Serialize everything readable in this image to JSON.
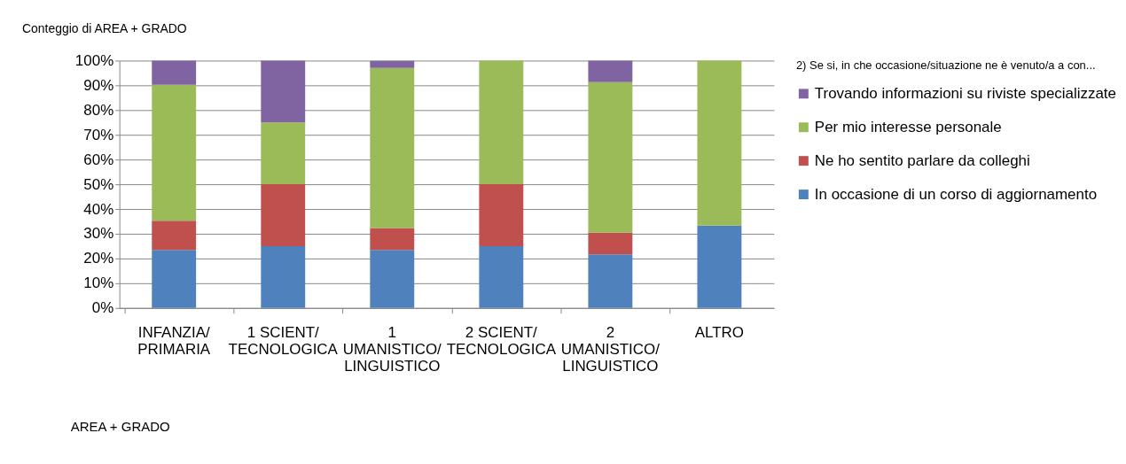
{
  "chart_data": {
    "type": "bar",
    "stacked": true,
    "title": "Conteggio di AREA + GRADO",
    "categories": [
      "INFANZIA/\nPRIMARIA",
      "1 SCIENT/\nTECNOLOGICA",
      "1\nUMANISTICO/\nLINGUISTICO",
      "2 SCIENT/\nTECNOLOGICA",
      "2\nUMANISTICO/\nLINGUISTICO",
      "ALTRO"
    ],
    "series": [
      {
        "name": "In occasione di un corso di aggiornamento",
        "color": "#4f81bd",
        "values": [
          23.5,
          25,
          23.5,
          25,
          21.7,
          33.3
        ]
      },
      {
        "name": "Ne ho sentito parlare da colleghi",
        "color": "#c0504d",
        "values": [
          11.8,
          25,
          8.8,
          25,
          8.7,
          0
        ]
      },
      {
        "name": "Per mio interesse personale",
        "color": "#9bbb59",
        "values": [
          54.9,
          25,
          64.7,
          50,
          60.9,
          66.7
        ]
      },
      {
        "name": "Trovando informazioni su riviste specializzate",
        "color": "#8064a2",
        "values": [
          9.8,
          25,
          2.9,
          0,
          8.7,
          0
        ]
      }
    ],
    "legend_title": "2) Se si, in che occasione/situazione ne è venuto/a a con...",
    "legend": "right",
    "ylim": [
      0,
      100
    ],
    "yticks": [
      {
        "value": 0,
        "label": "0%"
      },
      {
        "value": 10,
        "label": "10%"
      },
      {
        "value": 20,
        "label": "20%"
      },
      {
        "value": 30,
        "label": "30%"
      },
      {
        "value": 40,
        "label": "40%"
      },
      {
        "value": 50,
        "label": "50%"
      },
      {
        "value": 60,
        "label": "60%"
      },
      {
        "value": 70,
        "label": "70%"
      },
      {
        "value": 80,
        "label": "80%"
      },
      {
        "value": 90,
        "label": "90%"
      },
      {
        "value": 100,
        "label": "100%"
      }
    ],
    "grid": "y",
    "annotations": [
      "AREA + GRADO"
    ]
  }
}
